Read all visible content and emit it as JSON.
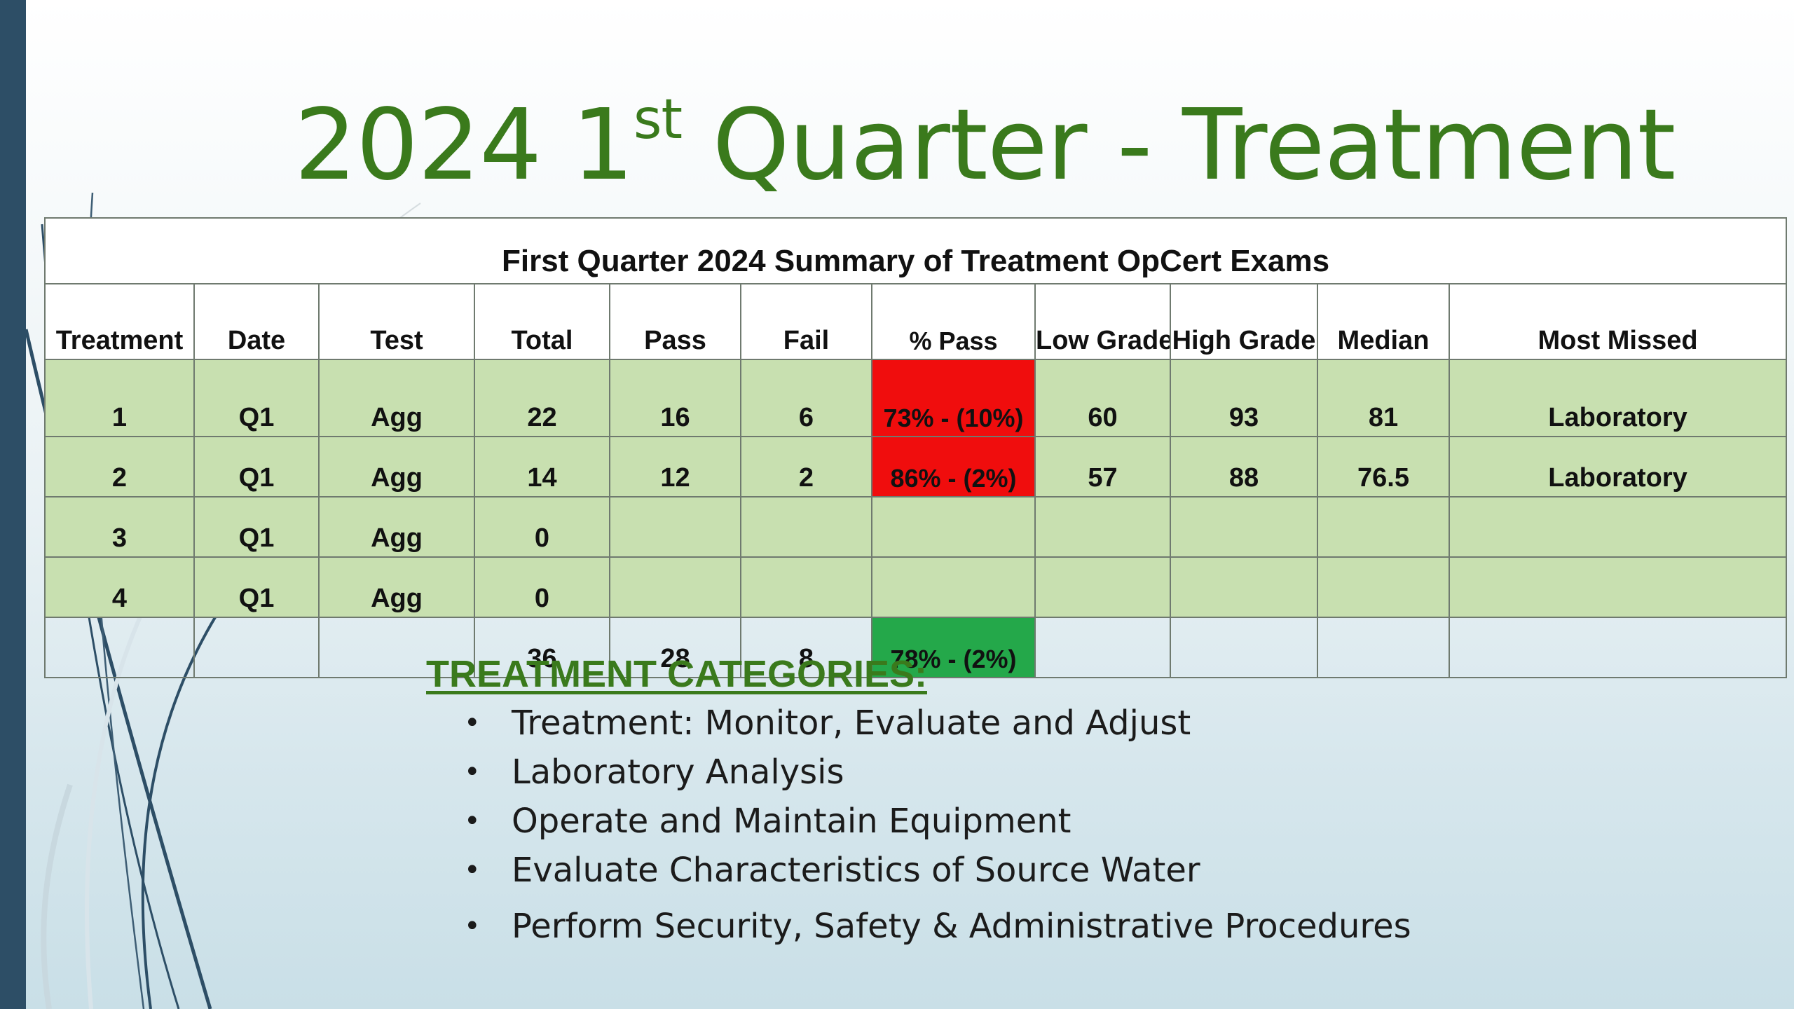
{
  "slide": {
    "title_prefix": "2024 1",
    "title_sup": "st",
    "title_suffix": " Quarter - Treatment"
  },
  "table": {
    "caption": "First Quarter 2024 Summary of Treatment OpCert Exams",
    "headers": [
      "Treatment",
      "Date",
      "Test",
      "Total",
      "Pass",
      "Fail",
      "% Pass",
      "Low Grade",
      "High Grade",
      "Median",
      "Most Missed"
    ],
    "rows": [
      [
        "1",
        "Q1",
        "Agg",
        "22",
        "16",
        "6",
        "73% - (10%)",
        "60",
        "93",
        "81",
        "Laboratory"
      ],
      [
        "2",
        "Q1",
        "Agg",
        "14",
        "12",
        "2",
        "86% - (2%)",
        "57",
        "88",
        "76.5",
        "Laboratory"
      ],
      [
        "3",
        "Q1",
        "Agg",
        "0",
        "",
        "",
        "",
        "",
        "",
        "",
        ""
      ],
      [
        "4",
        "Q1",
        "Agg",
        "0",
        "",
        "",
        "",
        "",
        "",
        "",
        ""
      ]
    ],
    "totals": [
      "",
      "",
      "",
      "36",
      "28",
      "8",
      "78% - (2%)",
      "",
      "",
      "",
      ""
    ],
    "colors": {
      "row_fill": "#c8e0b0",
      "below_target": "#f00d0d",
      "above_target": "#24a84a"
    }
  },
  "categories": {
    "heading": "TREATMENT CATEGORIES",
    "heading_colon": ":",
    "bullet": "•",
    "items": [
      "Treatment: Monitor, Evaluate and Adjust",
      "Laboratory Analysis",
      "Operate and Maintain Equipment",
      "Evaluate Characteristics of Source Water",
      "Perform Security, Safety & Administrative Procedures"
    ]
  },
  "theme": {
    "title_color": "#3a7a1c",
    "accent_bar": "#2d4e66"
  }
}
